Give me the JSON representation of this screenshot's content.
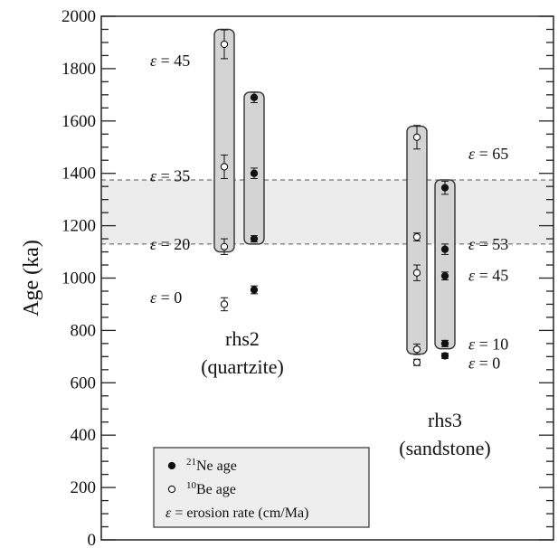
{
  "chart_data": {
    "type": "scatter",
    "ylabel": "Age (ka)",
    "ylim": [
      0,
      2000
    ],
    "y_ticks": [
      "0",
      "200",
      "400",
      "600",
      "800",
      "1000",
      "1200",
      "1400",
      "1600",
      "1800",
      "2000"
    ],
    "y_minor_step": 50,
    "x_ticks_shown": false,
    "shaded_band": {
      "y": [
        1130,
        1375
      ],
      "color": "#ececec"
    },
    "groups": [
      {
        "label": "rhs2\n(quartzite)"
      },
      {
        "label": "rhs3\n(sandstone)"
      }
    ],
    "series": [
      {
        "name": "21Ne age",
        "marker": "filled",
        "points": [
          {
            "group": 0,
            "erosion": 0,
            "y": 955,
            "err": 15
          },
          {
            "group": 0,
            "erosion": 20,
            "y": 1150,
            "err": 12
          },
          {
            "group": 0,
            "erosion": 35,
            "y": 1400,
            "err": 20
          },
          {
            "group": 0,
            "erosion": 45,
            "y": 1690,
            "err": 20
          },
          {
            "group": 1,
            "erosion": 0,
            "y": 703,
            "err": 10
          },
          {
            "group": 1,
            "erosion": 10,
            "y": 750,
            "err": 12
          },
          {
            "group": 1,
            "erosion": 45,
            "y": 1008,
            "err": 15
          },
          {
            "group": 1,
            "erosion": 53,
            "y": 1110,
            "err": 20
          },
          {
            "group": 1,
            "erosion": 65,
            "y": 1345,
            "err": 25
          }
        ]
      },
      {
        "name": "10Be age",
        "marker": "open",
        "points": [
          {
            "group": 0,
            "erosion": 0,
            "y": 900,
            "err": 25
          },
          {
            "group": 0,
            "erosion": 20,
            "y": 1120,
            "err": 30
          },
          {
            "group": 0,
            "erosion": 35,
            "y": 1425,
            "err": 45
          },
          {
            "group": 0,
            "erosion": 45,
            "y": 1893,
            "err": 55
          },
          {
            "group": 1,
            "erosion": 0,
            "y": 678,
            "err": 12
          },
          {
            "group": 1,
            "erosion": 10,
            "y": 728,
            "err": 20
          },
          {
            "group": 1,
            "erosion": 45,
            "y": 1020,
            "err": 30
          },
          {
            "group": 1,
            "erosion": 53,
            "y": 1157,
            "err": 15
          },
          {
            "group": 1,
            "erosion": 65,
            "y": 1538,
            "err": 45
          }
        ]
      }
    ],
    "range_boxes": [
      {
        "group": 0,
        "series": "10Be age",
        "y_min": 1100,
        "y_max": 1950
      },
      {
        "group": 0,
        "series": "21Ne age",
        "y_min": 1130,
        "y_max": 1710
      },
      {
        "group": 1,
        "series": "10Be age",
        "y_min": 710,
        "y_max": 1580
      },
      {
        "group": 1,
        "series": "21Ne age",
        "y_min": 730,
        "y_max": 1375
      }
    ],
    "erosion_labels": [
      {
        "group": 0,
        "symbol": "ε",
        "text": " = 45",
        "y": 1830
      },
      {
        "group": 0,
        "symbol": "ε",
        "text": " = 35",
        "y": 1390
      },
      {
        "group": 0,
        "symbol": "ε",
        "text": " = 20",
        "y": 1130
      },
      {
        "group": 0,
        "symbol": "ε",
        "text": " = 0",
        "y": 925
      },
      {
        "group": 1,
        "symbol": "ε",
        "text": " = 65",
        "y": 1475
      },
      {
        "group": 1,
        "symbol": "ε",
        "text": " = 53",
        "y": 1130
      },
      {
        "group": 1,
        "symbol": "ε",
        "text": " = 45",
        "y": 1010
      },
      {
        "group": 1,
        "symbol": "ε",
        "text": " = 10",
        "y": 748
      },
      {
        "group": 1,
        "symbol": "ε",
        "text": " = 0",
        "y": 675
      }
    ],
    "legend": {
      "position": "bottom-left",
      "entries": [
        {
          "marker": "filled",
          "sup": "21",
          "text": "Ne age"
        },
        {
          "marker": "open",
          "sup": "10",
          "text": "Be age"
        },
        {
          "marker": "none",
          "symbol": "ε",
          "text": " = erosion rate (cm/Ma)"
        }
      ]
    }
  }
}
